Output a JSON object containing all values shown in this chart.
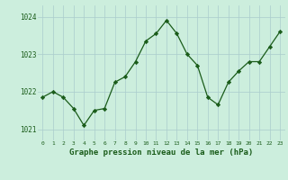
{
  "x": [
    0,
    1,
    2,
    3,
    4,
    5,
    6,
    7,
    8,
    9,
    10,
    11,
    12,
    13,
    14,
    15,
    16,
    17,
    18,
    19,
    20,
    21,
    22,
    23
  ],
  "y": [
    1021.85,
    1022.0,
    1021.85,
    1021.55,
    1021.1,
    1021.5,
    1021.55,
    1022.25,
    1022.4,
    1022.8,
    1023.35,
    1023.55,
    1023.9,
    1023.55,
    1023.0,
    1022.7,
    1021.85,
    1021.65,
    1022.25,
    1022.55,
    1022.8,
    1022.8,
    1023.2,
    1023.6
  ],
  "line_color": "#1a5c1a",
  "marker_color": "#1a5c1a",
  "bg_color": "#cceedd",
  "grid_color": "#aacccc",
  "xlabel": "Graphe pression niveau de la mer (hPa)",
  "xlabel_color": "#1a5c1a",
  "tick_color": "#1a5c1a",
  "ylim": [
    1020.7,
    1024.3
  ],
  "yticks": [
    1021,
    1022,
    1023,
    1024
  ],
  "xticks": [
    0,
    1,
    2,
    3,
    4,
    5,
    6,
    7,
    8,
    9,
    10,
    11,
    12,
    13,
    14,
    15,
    16,
    17,
    18,
    19,
    20,
    21,
    22,
    23
  ]
}
